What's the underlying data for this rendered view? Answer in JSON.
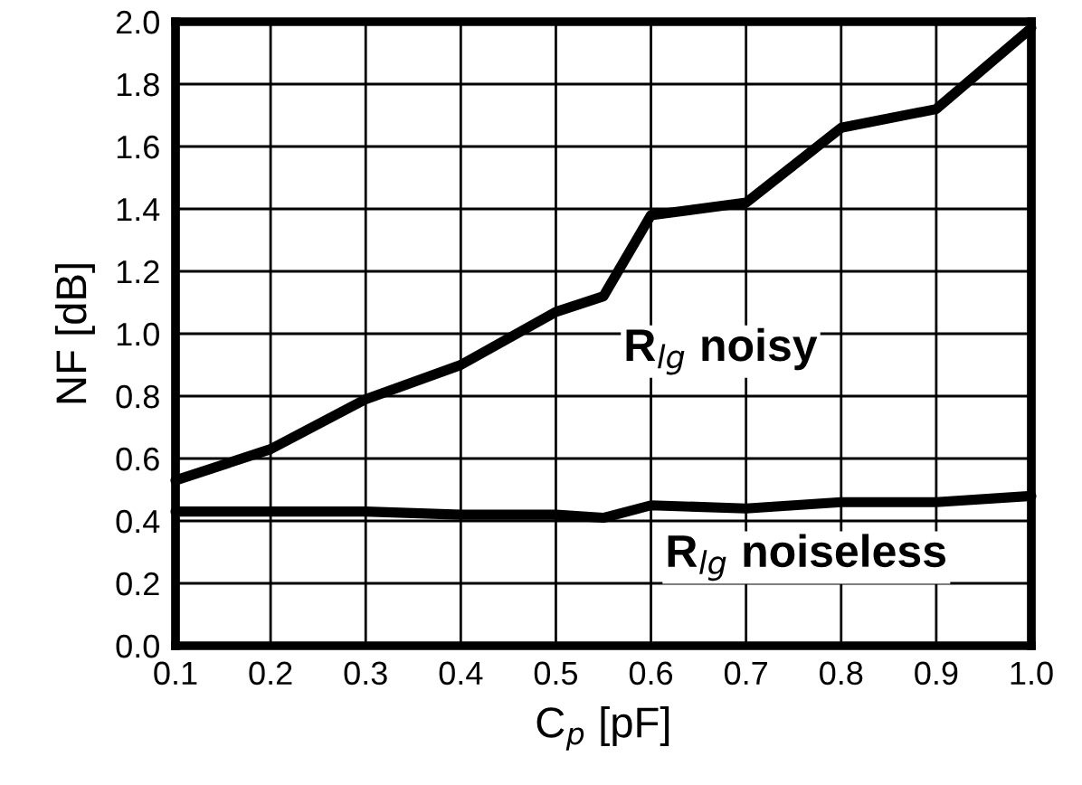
{
  "chart_data": {
    "type": "line",
    "xlabel": "C$_{p}$ [pF]",
    "ylabel": "NF [dB]",
    "xlim": [
      0.1,
      1.0
    ],
    "xticks": [
      {
        "value": 0.1,
        "label": "0.1"
      },
      {
        "value": 0.2,
        "label": "0.2"
      },
      {
        "value": 0.3,
        "label": "0.3"
      },
      {
        "value": 0.4,
        "label": "0.4"
      },
      {
        "value": 0.5,
        "label": "0.5"
      },
      {
        "value": 0.6,
        "label": "0.6"
      },
      {
        "value": 0.7,
        "label": "0.7"
      },
      {
        "value": 0.8,
        "label": "0.8"
      },
      {
        "value": 0.9,
        "label": "0.9"
      },
      {
        "value": 1.0,
        "label": "1.0"
      }
    ],
    "ylim": [
      0.0,
      2.0
    ],
    "yticks": [
      {
        "value": 0.0,
        "label": "0.0"
      },
      {
        "value": 0.2,
        "label": "0.2"
      },
      {
        "value": 0.4,
        "label": "0.4"
      },
      {
        "value": 0.6,
        "label": "0.6"
      },
      {
        "value": 0.8,
        "label": "0.8"
      },
      {
        "value": 1.0,
        "label": "1.0"
      },
      {
        "value": 1.2,
        "label": "1.2"
      },
      {
        "value": 1.4,
        "label": "1.4"
      },
      {
        "value": 1.6,
        "label": "1.6"
      },
      {
        "value": 1.8,
        "label": "1.8"
      },
      {
        "value": 2.0,
        "label": "2.0"
      }
    ],
    "grid": true,
    "marker": "none",
    "line_style": "solid",
    "series": [
      {
        "name": "R$_{lg}$ noisy",
        "color": "#000000",
        "x": [
          0.1,
          0.2,
          0.3,
          0.4,
          0.5,
          0.55,
          0.6,
          0.7,
          0.8,
          0.9,
          1.0
        ],
        "values": [
          0.53,
          0.63,
          0.79,
          0.9,
          1.07,
          1.12,
          1.38,
          1.42,
          1.66,
          1.72,
          1.98
        ]
      },
      {
        "name": "R$_{lg}$ noiseless",
        "color": "#000000",
        "x": [
          0.1,
          0.2,
          0.3,
          0.4,
          0.5,
          0.55,
          0.6,
          0.7,
          0.8,
          0.9,
          1.0
        ],
        "values": [
          0.43,
          0.43,
          0.43,
          0.42,
          0.42,
          0.41,
          0.45,
          0.44,
          0.46,
          0.46,
          0.48
        ]
      }
    ]
  }
}
